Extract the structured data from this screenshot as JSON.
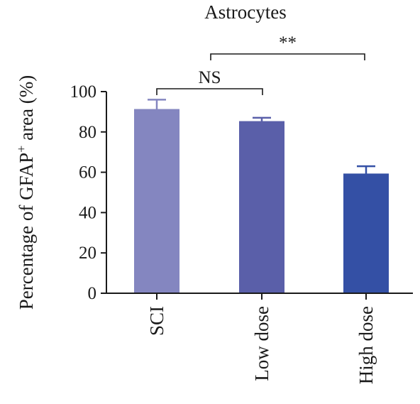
{
  "chart_data": {
    "type": "bar",
    "title": "Astrocytes",
    "ylabel_main": "Percentage of GFAP",
    "ylabel_sup": "+",
    "ylabel_tail": " area (%)",
    "categories": [
      "SCI",
      "Low dose",
      "High dose"
    ],
    "values": [
      91,
      85,
      59
    ],
    "error_upper": [
      96,
      87,
      63
    ],
    "ylim": [
      0,
      100
    ],
    "yticks": [
      0,
      20,
      40,
      60,
      80,
      100
    ],
    "bar_colors": [
      "#8486c0",
      "#5a5fa9",
      "#3450a5"
    ],
    "significance": [
      {
        "from": 0,
        "to": 1,
        "label": "NS"
      },
      {
        "from": 0,
        "to": 2,
        "label": "**"
      }
    ]
  }
}
